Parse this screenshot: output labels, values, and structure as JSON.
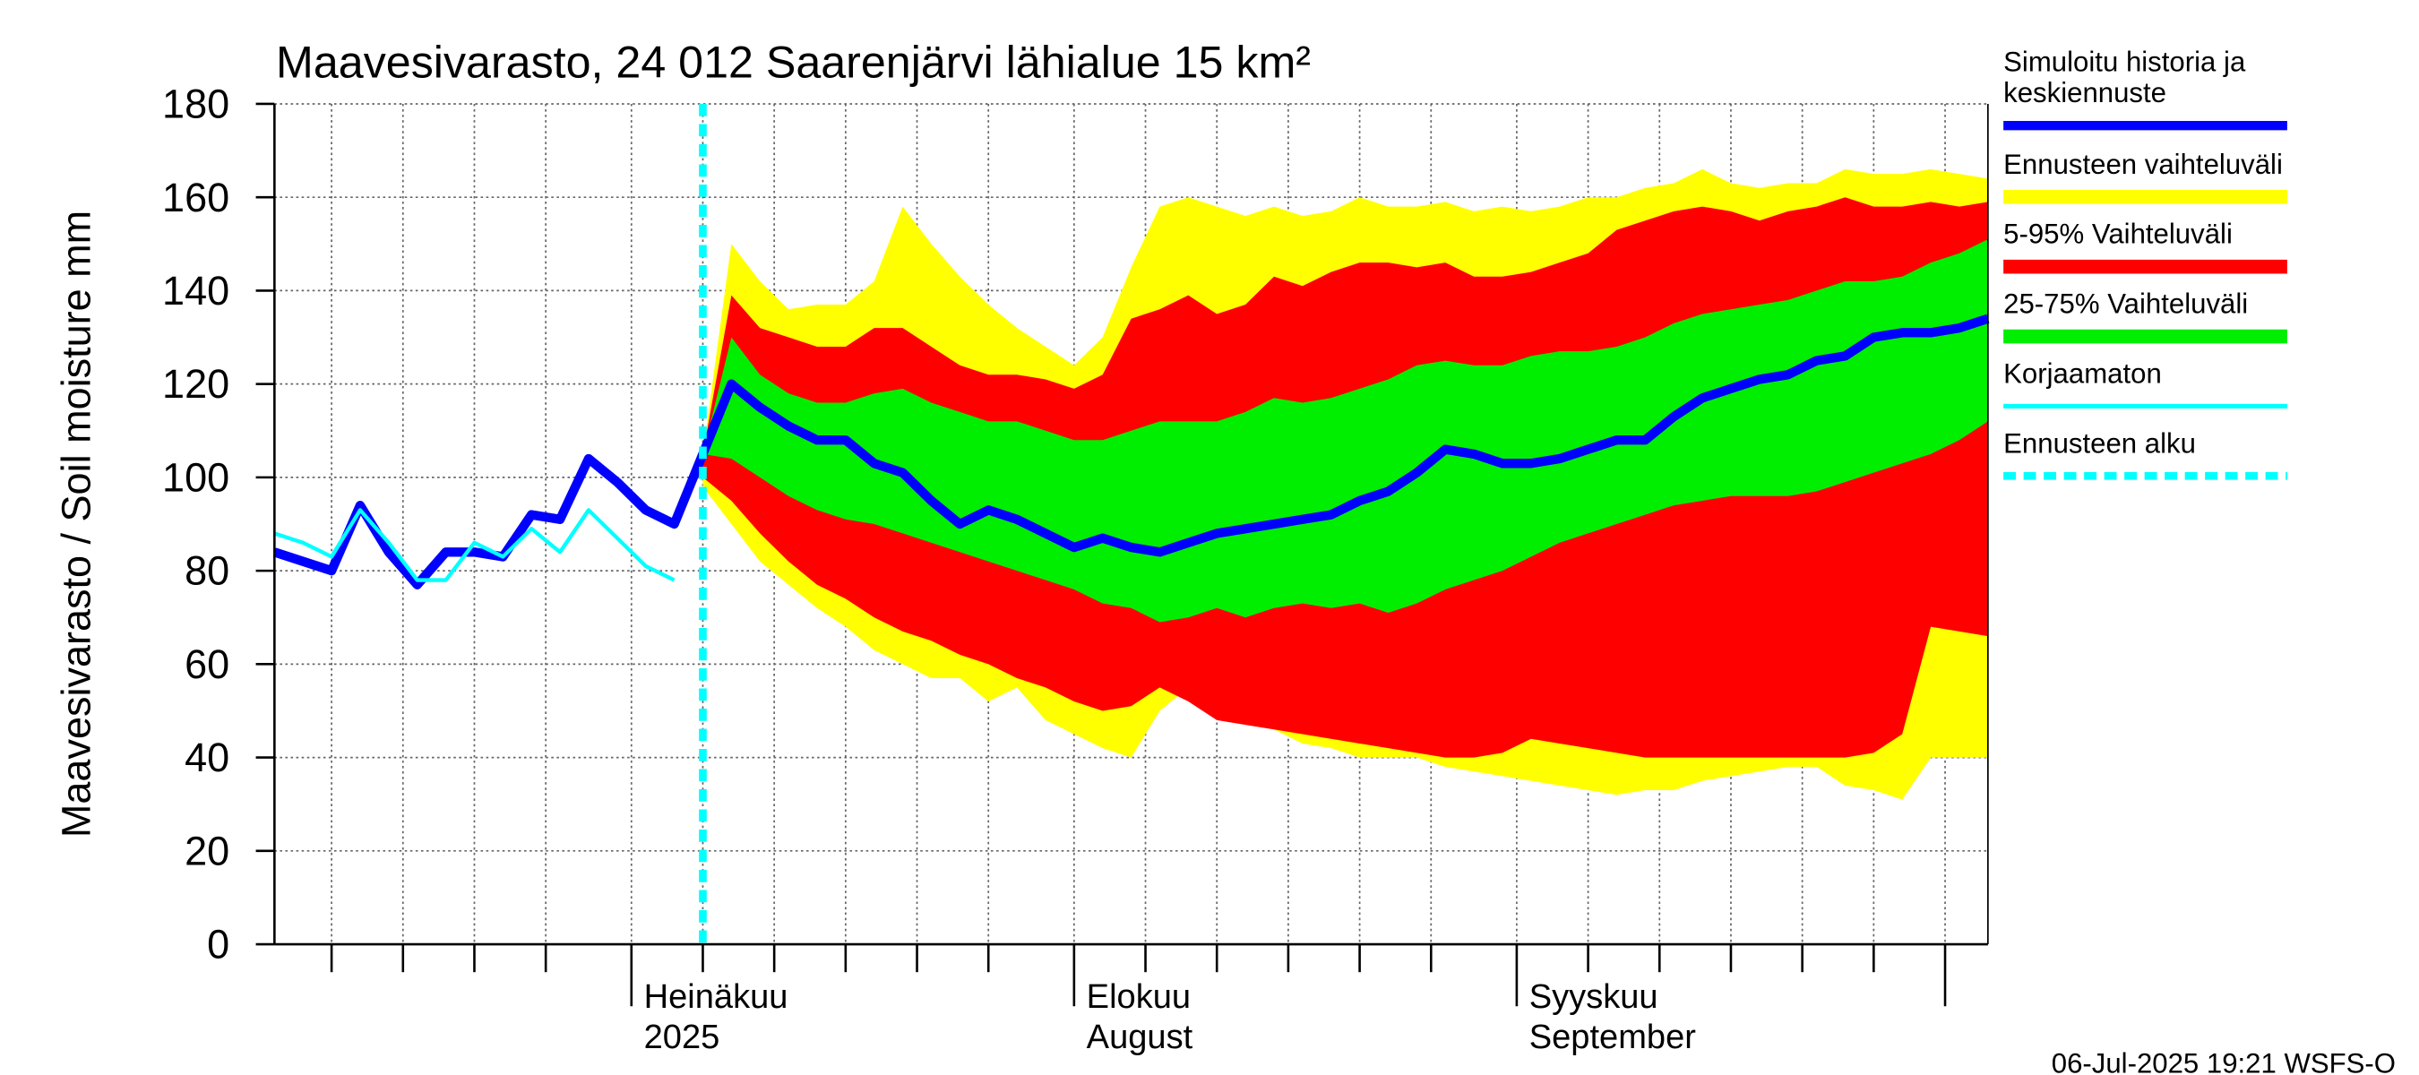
{
  "chart_data": {
    "type": "band-forecast",
    "title": "Maavesivarasto, 24 012 Saarenjärvi lähialue 15 km²",
    "ylabel": "Maavesivarasto / Soil moisture   mm",
    "footer": "06-Jul-2025 19:21 WSFS-O",
    "ylim": [
      0,
      180
    ],
    "yticks": [
      0,
      20,
      40,
      60,
      80,
      100,
      120,
      140,
      160,
      180
    ],
    "xlim": [
      "2025-06-06",
      "2025-10-04"
    ],
    "xticks": [
      "2025-06-10",
      "2025-06-15",
      "2025-06-20",
      "2025-06-25",
      "2025-07-01",
      "2025-07-06",
      "2025-07-11",
      "2025-07-16",
      "2025-07-21",
      "2025-07-26",
      "2025-08-01",
      "2025-08-06",
      "2025-08-11",
      "2025-08-16",
      "2025-08-21",
      "2025-08-26",
      "2025-09-01",
      "2025-09-06",
      "2025-09-11",
      "2025-09-16",
      "2025-09-21",
      "2025-09-26",
      "2025-10-01"
    ],
    "month_labels": [
      {
        "value": "2025-07-01",
        "label": "Heinäkuu",
        "sublabel": "2025"
      },
      {
        "value": "2025-08-01",
        "label": "Elokuu",
        "sublabel": "August"
      },
      {
        "value": "2025-09-01",
        "label": "Syyskuu",
        "sublabel": "September"
      }
    ],
    "grid": true,
    "x": [
      "2025-06-06",
      "2025-06-08",
      "2025-06-10",
      "2025-06-12",
      "2025-06-14",
      "2025-06-16",
      "2025-06-18",
      "2025-06-20",
      "2025-06-22",
      "2025-06-24",
      "2025-06-26",
      "2025-06-28",
      "2025-06-30",
      "2025-07-02",
      "2025-07-04",
      "2025-07-06",
      "2025-07-08",
      "2025-07-10",
      "2025-07-12",
      "2025-07-14",
      "2025-07-16",
      "2025-07-18",
      "2025-07-20",
      "2025-07-22",
      "2025-07-24",
      "2025-07-26",
      "2025-07-28",
      "2025-07-30",
      "2025-08-01",
      "2025-08-03",
      "2025-08-05",
      "2025-08-07",
      "2025-08-09",
      "2025-08-11",
      "2025-08-13",
      "2025-08-15",
      "2025-08-17",
      "2025-08-19",
      "2025-08-21",
      "2025-08-23",
      "2025-08-25",
      "2025-08-27",
      "2025-08-29",
      "2025-08-31",
      "2025-09-02",
      "2025-09-04",
      "2025-09-06",
      "2025-09-08",
      "2025-09-10",
      "2025-09-12",
      "2025-09-14",
      "2025-09-16",
      "2025-09-18",
      "2025-09-20",
      "2025-09-22",
      "2025-09-24",
      "2025-09-26",
      "2025-09-28",
      "2025-09-30",
      "2025-10-02",
      "2025-10-04"
    ],
    "series": [
      {
        "name": "Simuloitu historia ja keskiennuste",
        "color": "#0000ff",
        "values": [
          84,
          82,
          80,
          94,
          84,
          77,
          84,
          84,
          83,
          92,
          91,
          104,
          99,
          93,
          90,
          105,
          120,
          115,
          111,
          108,
          108,
          103,
          101,
          95,
          90,
          93,
          91,
          88,
          85,
          87,
          85,
          84,
          86,
          88,
          89,
          90,
          91,
          92,
          95,
          97,
          101,
          106,
          105,
          103,
          103,
          104,
          106,
          108,
          108,
          113,
          117,
          119,
          121,
          122,
          125,
          126,
          130,
          131,
          131,
          132,
          134
        ]
      },
      {
        "name": "Ennusteen vaihteluväli",
        "color": "#ffff00",
        "upper": [
          null,
          null,
          null,
          null,
          null,
          null,
          null,
          null,
          null,
          null,
          null,
          null,
          null,
          null,
          null,
          105,
          150,
          142,
          136,
          137,
          137,
          142,
          158,
          150,
          143,
          137,
          132,
          128,
          124,
          130,
          145,
          158,
          160,
          158,
          156,
          158,
          156,
          157,
          160,
          158,
          158,
          159,
          157,
          158,
          157,
          158,
          160,
          160,
          162,
          163,
          166,
          163,
          162,
          163,
          163,
          166,
          165,
          165,
          166,
          165,
          164
        ],
        "lower": [
          null,
          null,
          null,
          null,
          null,
          null,
          null,
          null,
          null,
          null,
          null,
          null,
          null,
          null,
          null,
          98,
          90,
          82,
          77,
          72,
          68,
          63,
          60,
          57,
          57,
          52,
          55,
          48,
          45,
          42,
          40,
          50,
          55,
          50,
          47,
          46,
          43,
          42,
          40,
          40,
          40,
          38,
          37,
          36,
          35,
          34,
          33,
          32,
          33,
          33,
          35,
          36,
          37,
          38,
          38,
          34,
          33,
          31,
          40,
          40,
          40
        ]
      },
      {
        "name": "5-95% Vaihteluväli",
        "color": "#ff0000",
        "upper": [
          null,
          null,
          null,
          null,
          null,
          null,
          null,
          null,
          null,
          null,
          null,
          null,
          null,
          null,
          null,
          105,
          139,
          132,
          130,
          128,
          128,
          132,
          132,
          128,
          124,
          122,
          122,
          121,
          119,
          122,
          134,
          136,
          139,
          135,
          137,
          143,
          141,
          144,
          146,
          146,
          145,
          146,
          143,
          143,
          144,
          146,
          148,
          153,
          155,
          157,
          158,
          157,
          155,
          157,
          158,
          160,
          158,
          158,
          159,
          158,
          159
        ],
        "lower": [
          null,
          null,
          null,
          null,
          null,
          null,
          null,
          null,
          null,
          null,
          null,
          null,
          null,
          null,
          null,
          100,
          95,
          88,
          82,
          77,
          74,
          70,
          67,
          65,
          62,
          60,
          57,
          55,
          52,
          50,
          51,
          55,
          52,
          48,
          47,
          46,
          45,
          44,
          43,
          42,
          41,
          40,
          40,
          41,
          44,
          43,
          42,
          41,
          40,
          40,
          40,
          40,
          40,
          40,
          40,
          40,
          41,
          45,
          68,
          67,
          66
        ]
      },
      {
        "name": "25-75% Vaihteluväli",
        "color": "#00ee00",
        "upper": [
          null,
          null,
          null,
          null,
          null,
          null,
          null,
          null,
          null,
          null,
          null,
          null,
          null,
          null,
          null,
          105,
          130,
          122,
          118,
          116,
          116,
          118,
          119,
          116,
          114,
          112,
          112,
          110,
          108,
          108,
          110,
          112,
          112,
          112,
          114,
          117,
          116,
          117,
          119,
          121,
          124,
          125,
          124,
          124,
          126,
          127,
          127,
          128,
          130,
          133,
          135,
          136,
          137,
          138,
          140,
          142,
          142,
          143,
          146,
          148,
          151
        ],
        "lower": [
          null,
          null,
          null,
          null,
          null,
          null,
          null,
          null,
          null,
          null,
          null,
          null,
          null,
          null,
          null,
          105,
          104,
          100,
          96,
          93,
          91,
          90,
          88,
          86,
          84,
          82,
          80,
          78,
          76,
          73,
          72,
          69,
          70,
          72,
          70,
          72,
          73,
          72,
          73,
          71,
          73,
          76,
          78,
          80,
          83,
          86,
          88,
          90,
          92,
          94,
          95,
          96,
          96,
          96,
          97,
          99,
          101,
          103,
          105,
          108,
          112
        ]
      },
      {
        "name": "Korjaamaton",
        "color": "#00ffff",
        "values": [
          88,
          86,
          83,
          93,
          86,
          78,
          78,
          86,
          83,
          89,
          84,
          93,
          87,
          81,
          78,
          null,
          null,
          null,
          null,
          null,
          null,
          null,
          null,
          null,
          null,
          null,
          null,
          null,
          null,
          null,
          null,
          null,
          null,
          null,
          null,
          null,
          null,
          null,
          null,
          null,
          null,
          null,
          null,
          null,
          null,
          null,
          null,
          null,
          null,
          null,
          null,
          null,
          null,
          null,
          null,
          null,
          null,
          null,
          null,
          null,
          null
        ]
      }
    ],
    "vline": {
      "name": "Ennusteen alku",
      "color": "#00ffff",
      "x": "2025-07-06"
    }
  }
}
